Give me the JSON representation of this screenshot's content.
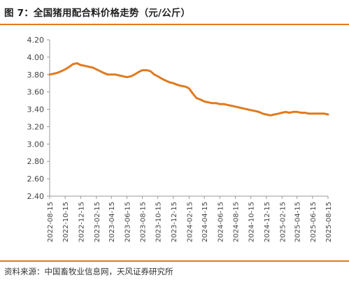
{
  "title": "图 7：全国猪用配合料价格走势（元/公斤）",
  "source": "资料来源：中国畜牧业信息网，天风证券研究所",
  "colors": {
    "accent": "#e07a1f",
    "series": "#e07a1f",
    "axis": "#9a9a9a",
    "text": "#444444"
  },
  "chart_data": {
    "type": "line",
    "title": "",
    "xlabel": "",
    "ylabel": "",
    "ylim": [
      2.4,
      4.2
    ],
    "yticks": [
      "4.20",
      "4.00",
      "3.80",
      "3.60",
      "3.40",
      "3.20",
      "3.00",
      "2.80",
      "2.60",
      "2.40"
    ],
    "xticks": [
      "2022-08-15",
      "2022-10-15",
      "2022-12-15",
      "2023-02-15",
      "2023-04-15",
      "2023-06-15",
      "2023-08-15",
      "2023-10-15",
      "2023-12-15",
      "2024-02-15",
      "2024-04-15",
      "2024-06-15",
      "2024-08-15",
      "2024-10-15",
      "2024-12-15",
      "2025-02-15",
      "2025-04-15",
      "2025-06-15",
      "2025-08-15"
    ],
    "grid": false,
    "legend": "none",
    "series": [
      {
        "x": [
          "2022-08-15",
          "2022-09-01",
          "2022-09-15",
          "2022-10-01",
          "2022-10-15",
          "2022-11-01",
          "2022-11-15",
          "2022-12-01",
          "2022-12-15",
          "2023-01-01",
          "2023-01-15",
          "2023-02-01",
          "2023-02-15",
          "2023-03-01",
          "2023-03-15",
          "2023-04-01",
          "2023-04-15",
          "2023-05-01",
          "2023-05-15",
          "2023-06-01",
          "2023-06-15",
          "2023-07-01",
          "2023-07-15",
          "2023-08-01",
          "2023-08-15",
          "2023-09-01",
          "2023-09-15",
          "2023-10-01",
          "2023-10-15",
          "2023-11-01",
          "2023-11-15",
          "2023-12-01",
          "2023-12-15",
          "2024-01-01",
          "2024-01-15",
          "2024-02-01",
          "2024-02-15",
          "2024-03-01",
          "2024-03-15",
          "2024-04-01",
          "2024-04-15",
          "2024-05-01",
          "2024-05-15",
          "2024-06-01",
          "2024-06-15",
          "2024-07-01",
          "2024-07-15",
          "2024-08-01",
          "2024-08-15",
          "2024-09-01",
          "2024-09-15",
          "2024-10-01",
          "2024-10-15",
          "2024-11-01",
          "2024-11-15",
          "2024-12-01",
          "2024-12-15",
          "2025-01-01",
          "2025-01-15",
          "2025-02-01",
          "2025-02-15",
          "2025-03-01",
          "2025-03-15",
          "2025-04-01",
          "2025-04-15",
          "2025-05-01",
          "2025-05-15",
          "2025-06-01",
          "2025-06-15",
          "2025-07-01",
          "2025-07-15",
          "2025-08-01",
          "2025-08-15"
        ],
        "values": [
          3.8,
          3.81,
          3.82,
          3.84,
          3.86,
          3.89,
          3.92,
          3.93,
          3.91,
          3.9,
          3.89,
          3.88,
          3.86,
          3.84,
          3.82,
          3.8,
          3.8,
          3.8,
          3.79,
          3.78,
          3.77,
          3.78,
          3.8,
          3.83,
          3.85,
          3.85,
          3.84,
          3.8,
          3.78,
          3.75,
          3.73,
          3.71,
          3.7,
          3.68,
          3.67,
          3.66,
          3.64,
          3.58,
          3.53,
          3.51,
          3.49,
          3.48,
          3.47,
          3.47,
          3.46,
          3.46,
          3.45,
          3.44,
          3.43,
          3.42,
          3.41,
          3.4,
          3.39,
          3.38,
          3.37,
          3.35,
          3.34,
          3.33,
          3.34,
          3.35,
          3.36,
          3.37,
          3.36,
          3.37,
          3.37,
          3.36,
          3.36,
          3.35,
          3.35,
          3.35,
          3.35,
          3.35,
          3.34
        ]
      }
    ]
  }
}
